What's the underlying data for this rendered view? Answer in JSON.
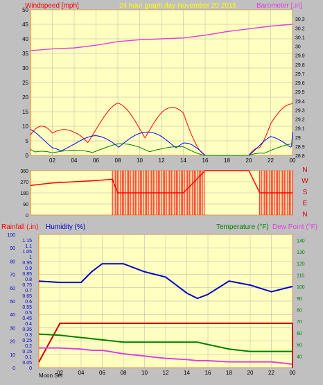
{
  "header": {
    "left_label": "Windspeed [mph]",
    "center_label": "24 hour graph day   November 20 2015",
    "right_label": "Barometer [.in]"
  },
  "dir_letters": [
    "N",
    "W",
    "S",
    "E",
    "N"
  ],
  "lower_header": {
    "rain_label": "Rainfall (.in)",
    "hum_label": "Humidity (%)",
    "temp_label": "Temperature (°F)",
    "dew_label": "Dew Point (°F)"
  },
  "footer": {
    "moon_set": "Moon Set"
  },
  "colors": {
    "wind_gust": "#ff0000",
    "wind_avg": "#0000ff",
    "wind_low": "#008000",
    "barometer": "#e040e0",
    "direction": "#ff0000",
    "rainfall": "#cc0000",
    "humidity": "#0000cc",
    "temperature": "#008000",
    "dewpoint": "#e040e0",
    "background": "#ffffc0",
    "frame": "#c0c0c0"
  },
  "chart_data": [
    {
      "type": "line",
      "title": "",
      "xlabel": "",
      "ylabel": "Windspeed [mph]",
      "y2label": "Barometer [.in]",
      "x_ticks": [
        "02",
        "04",
        "06",
        "08",
        "10",
        "12",
        "14",
        "16",
        "18",
        "20",
        "22",
        "00"
      ],
      "ylim": [
        0,
        50
      ],
      "y_ticks": [
        0,
        5,
        10,
        15,
        20,
        25,
        30,
        35,
        40,
        45,
        50
      ],
      "y2lim": [
        28.8,
        30.4
      ],
      "y2_ticks": [
        28.8,
        28.9,
        29,
        29.1,
        29.2,
        29.3,
        29.4,
        29.5,
        29.6,
        29.7,
        29.8,
        29.9,
        30,
        30.1,
        30.2,
        30.3
      ],
      "x_hours": [
        0,
        2,
        4,
        6,
        8,
        10,
        12,
        14,
        16,
        18,
        20,
        22,
        24
      ],
      "series": [
        {
          "name": "Windspeed gust",
          "axis": "left",
          "values": [
            20,
            8,
            10,
            14,
            18,
            17,
            17,
            16,
            0,
            0,
            0,
            15,
            18
          ]
        },
        {
          "name": "Windspeed average",
          "axis": "left",
          "values": [
            9,
            4,
            5,
            7,
            8,
            8,
            8,
            7,
            0,
            0,
            0,
            7,
            8
          ]
        },
        {
          "name": "Windspeed low",
          "axis": "left",
          "values": [
            4,
            1,
            2,
            3,
            4,
            4,
            3,
            3,
            0,
            0,
            0,
            3,
            4
          ]
        },
        {
          "name": "Barometer",
          "axis": "right",
          "values": [
            29.95,
            29.97,
            29.98,
            30.01,
            30.05,
            30.07,
            30.08,
            30.09,
            30.12,
            30.16,
            30.19,
            30.22,
            30.24
          ]
        }
      ]
    },
    {
      "type": "line",
      "title": "",
      "ylabel": "Wind direction",
      "ylim": [
        0,
        360
      ],
      "y_ticks": [
        0,
        90,
        180,
        270,
        360
      ],
      "x_hours": [
        0,
        1,
        2,
        4,
        6,
        7.5,
        8,
        10,
        12,
        14,
        16,
        18,
        20,
        21,
        22,
        24
      ],
      "series": [
        {
          "name": "Wind direction",
          "values": [
            240,
            250,
            260,
            270,
            280,
            290,
            180,
            180,
            180,
            180,
            360,
            360,
            360,
            180,
            180,
            180
          ]
        }
      ]
    },
    {
      "type": "line",
      "title": "",
      "x_ticks": [
        "02",
        "04",
        "06",
        "08",
        "10",
        "12",
        "14",
        "16",
        "18",
        "20",
        "22",
        "00"
      ],
      "rain_ylim": [
        0,
        1.2
      ],
      "rain_ticks": [
        0,
        0.05,
        0.1,
        0.15,
        0.2,
        0.25,
        0.3,
        0.35,
        0.4,
        0.45,
        0.5,
        0.55,
        0.6,
        0.65,
        0.7,
        0.75,
        0.8,
        0.85,
        0.9,
        0.95,
        1,
        1.05,
        1.1,
        1.15
      ],
      "hum_ylim": [
        0,
        100
      ],
      "hum_ticks": [
        0,
        10,
        20,
        30,
        40,
        50,
        60,
        70,
        80,
        90,
        100
      ],
      "temp_ylim": [
        30,
        145
      ],
      "temp_ticks": [
        40,
        50,
        60,
        70,
        80,
        90,
        100,
        110,
        120,
        130,
        140
      ],
      "x_hours": [
        0,
        2,
        4,
        5,
        6,
        8,
        10,
        12,
        14,
        15,
        16,
        18,
        20,
        22,
        24
      ],
      "series": [
        {
          "name": "Rainfall",
          "axis": "rain",
          "values": [
            0.05,
            0.4,
            0.4,
            0.4,
            0.4,
            0.4,
            0.4,
            0.4,
            0.4,
            0.4,
            0.4,
            0.4,
            0.4,
            0.4,
            0.4
          ]
        },
        {
          "name": "Humidity",
          "axis": "hum",
          "values": [
            65,
            64,
            64,
            72,
            78,
            78,
            72,
            68,
            56,
            52,
            55,
            65,
            62,
            57,
            61
          ]
        },
        {
          "name": "Temperature",
          "axis": "temp",
          "values": [
            59,
            58,
            56,
            55,
            54,
            52,
            52,
            52,
            52,
            52,
            50,
            46,
            44,
            44,
            44
          ]
        },
        {
          "name": "Dew Point",
          "axis": "temp",
          "values": [
            47,
            47,
            46,
            45,
            45,
            42,
            40,
            38,
            37,
            36,
            36,
            35,
            35,
            35,
            33
          ]
        }
      ]
    }
  ]
}
